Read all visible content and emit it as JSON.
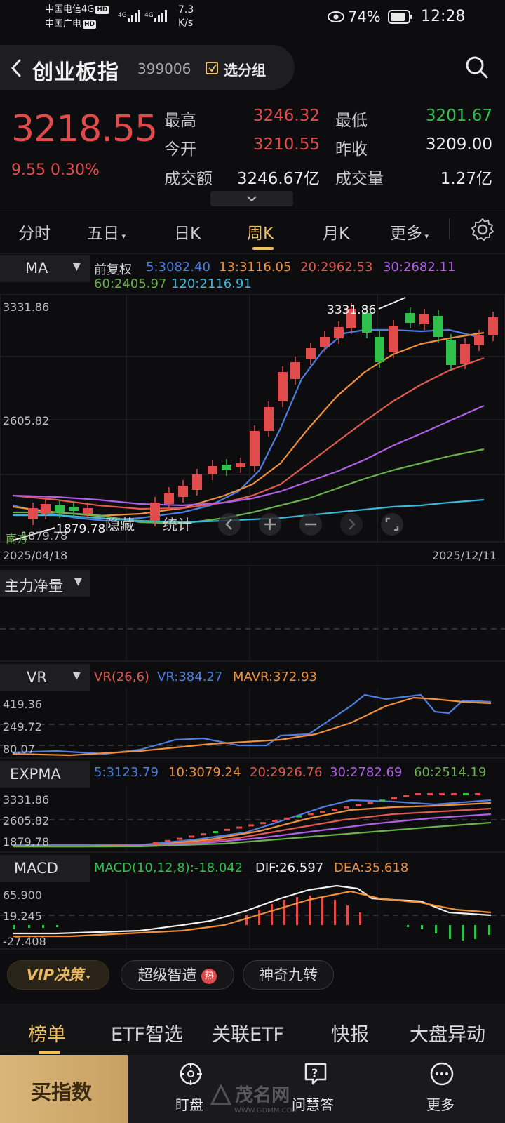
{
  "status_bar": {
    "carrier1": "中国电信4G",
    "carrier2": "中国广电",
    "hd": "HD",
    "net1": "4G",
    "net2": "4G",
    "speed_value": "7.3",
    "speed_unit": "K/s",
    "battery": "74%",
    "time": "12:28"
  },
  "header": {
    "title": "创业板指",
    "code": "399006",
    "add_group": "选分组"
  },
  "quote": {
    "price": "3218.55",
    "change": "9.55 0.30%",
    "high_label": "最高",
    "high": "3246.32",
    "low_label": "最低",
    "low": "3201.67",
    "open_label": "今开",
    "open": "3210.55",
    "prev_label": "昨收",
    "prev": "3209.00",
    "amount_label": "成交额",
    "amount": "3246.67亿",
    "volume_label": "成交量",
    "volume": "1.27亿"
  },
  "tabs": [
    "分时",
    "五日",
    "日K",
    "周K",
    "月K",
    "更多"
  ],
  "main_chart": {
    "indicator": "MA",
    "adjust": "前复权",
    "ma5": "5:3082.40",
    "ma13": "13:3116.05",
    "ma20": "20:2962.53",
    "ma30": "30:2682.11",
    "ma60": "60:2405.97",
    "ma120": "120:2116.91",
    "y_top": "3331.86",
    "y_mid": "2605.82",
    "y_low": "1879.78",
    "high_marker": "3331.86",
    "low_marker": "1879.78",
    "date_start": "2025/04/18",
    "date_end": "2025/12/11",
    "hide_label": "隐藏",
    "stats_label": "统计",
    "corner_text": "南方"
  },
  "main_force": {
    "label": "主力净量"
  },
  "vr": {
    "label": "VR",
    "params": "VR(26,6)",
    "vr": "VR:384.27",
    "mavr": "MAVR:372.93",
    "y1": "419.36",
    "y2": "249.72",
    "y3": "80.07"
  },
  "expma": {
    "label": "EXPMA",
    "e5": "5:3123.79",
    "e10": "10:3079.24",
    "e20": "20:2926.76",
    "e30": "30:2782.69",
    "e60": "60:2514.19",
    "y1": "3331.86",
    "y2": "2605.82",
    "y3": "1879.78"
  },
  "macd": {
    "label": "MACD",
    "macd": "MACD(10,12,8):-18.042",
    "dif": "DIF:26.597",
    "dea": "DEA:35.618",
    "y1": "65.900",
    "y2": "19.245",
    "y3": "-27.408"
  },
  "pills": {
    "vip": "VIP决策",
    "smart": "超级智造",
    "hot": "热",
    "nine": "神奇九转"
  },
  "bottom_tabs": [
    "榜单",
    "ETF智选",
    "关联ETF",
    "快报",
    "大盘异动"
  ],
  "nav": {
    "buy": "买指数",
    "watch": "盯盘",
    "ask": "问慧答",
    "more": "更多"
  },
  "watermark": {
    "brand": "茂名网",
    "url": "WWW.GDMM.COM"
  },
  "colors": {
    "up": "#e24b4b",
    "down": "#2fbf4b",
    "accent": "#f0c060",
    "ma5": "#4d7ee0",
    "ma13": "#f0903a",
    "ma20": "#e05a50",
    "ma30": "#b060e8",
    "ma60": "#6ab04c",
    "ma120": "#3ab8d8"
  }
}
